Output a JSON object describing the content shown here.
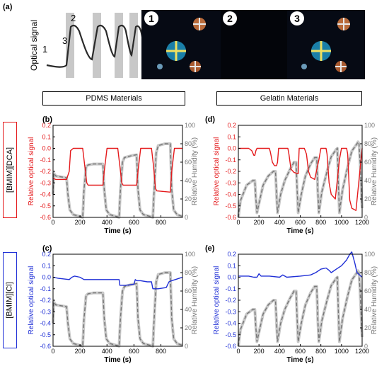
{
  "figure": {
    "panel_a": "(a)",
    "panel_b": "(b)",
    "panel_c": "(c)",
    "panel_d": "(d)",
    "panel_e": "(e)",
    "header_pdms": "PDMS Materials",
    "header_gelatin": "Gelatin Materials",
    "row_label_dca": "[BMIM][DCA]",
    "row_label_cl": "[BMIM][Cl]",
    "colors": {
      "red": "#e41a1c",
      "blue": "#1f2fd6",
      "gray": "#777777",
      "grayband": "#c8c8c8",
      "dca_box": "#e41a1c",
      "cl_box": "#1f2fd6"
    }
  },
  "panel_a": {
    "ylabel": "Optical signal",
    "points": [
      "1",
      "2",
      "3"
    ],
    "micrographs": [
      "1",
      "2",
      "3"
    ]
  },
  "chart_data": [
    {
      "panel": "(b)",
      "type": "line",
      "xlabel": "Time (s)",
      "ylabel": "Relative optical signal",
      "y2label": "Relative Humidity (%)",
      "xlim": [
        0,
        960
      ],
      "ylim": [
        -0.6,
        0.2
      ],
      "y2lim": [
        0,
        100
      ],
      "xticks": [
        0,
        200,
        400,
        600,
        800
      ],
      "yticks": [
        -0.6,
        -0.5,
        -0.4,
        -0.3,
        -0.2,
        -0.1,
        0.0,
        0.1,
        0.2
      ],
      "y2ticks": [
        0,
        20,
        40,
        60,
        80,
        100
      ],
      "signal_color": "#e41a1c",
      "signal": {
        "x": [
          0,
          20,
          100,
          120,
          130,
          150,
          220,
          235,
          250,
          260,
          370,
          380,
          400,
          480,
          495,
          510,
          520,
          620,
          630,
          650,
          730,
          745,
          760,
          770,
          870,
          880,
          900,
          960
        ],
        "y": [
          -0.26,
          -0.27,
          -0.27,
          -0.2,
          -0.02,
          0.0,
          0.0,
          -0.15,
          -0.3,
          -0.32,
          -0.32,
          -0.2,
          0.0,
          0.0,
          -0.15,
          -0.3,
          -0.32,
          -0.32,
          -0.2,
          0.0,
          0.0,
          -0.15,
          -0.35,
          -0.37,
          -0.38,
          -0.2,
          0.0,
          0.0
        ]
      },
      "humidity": {
        "x": [
          0,
          5,
          20,
          60,
          100,
          110,
          125,
          150,
          200,
          220,
          230,
          245,
          260,
          300,
          370,
          380,
          395,
          420,
          470,
          490,
          500,
          515,
          530,
          580,
          620,
          630,
          645,
          670,
          720,
          740,
          750,
          765,
          780,
          830,
          870,
          880,
          895,
          920,
          960
        ],
        "y": [
          25,
          48,
          45,
          44,
          43,
          25,
          8,
          3,
          1,
          0,
          30,
          55,
          57,
          58,
          58,
          30,
          8,
          3,
          1,
          0,
          30,
          60,
          65,
          67,
          68,
          30,
          8,
          3,
          1,
          0,
          30,
          70,
          78,
          80,
          80,
          30,
          8,
          3,
          1
        ]
      }
    },
    {
      "panel": "(c)",
      "type": "line",
      "xlabel": "Time (s)",
      "ylabel": "Relative optical signal",
      "y2label": "Relative Humidity (%)",
      "xlim": [
        0,
        960
      ],
      "ylim": [
        -0.6,
        0.2
      ],
      "y2lim": [
        0,
        100
      ],
      "xticks": [
        0,
        200,
        400,
        600,
        800
      ],
      "yticks": [
        -0.6,
        -0.5,
        -0.4,
        -0.3,
        -0.2,
        -0.1,
        0.0,
        0.1,
        0.2
      ],
      "y2ticks": [
        0,
        20,
        40,
        60,
        80,
        100
      ],
      "signal_color": "#1f2fd6",
      "signal": {
        "x": [
          0,
          40,
          80,
          120,
          140,
          160,
          200,
          230,
          250,
          300,
          350,
          400,
          460,
          490,
          495,
          540,
          600,
          610,
          620,
          650,
          700,
          730,
          740,
          780,
          840,
          860,
          880,
          960
        ],
        "y": [
          0.0,
          -0.01,
          -0.015,
          -0.02,
          0.0,
          0.01,
          0.0,
          -0.02,
          -0.02,
          -0.02,
          -0.02,
          -0.02,
          -0.02,
          -0.02,
          -0.07,
          -0.07,
          -0.06,
          -0.02,
          -0.03,
          -0.03,
          -0.04,
          -0.04,
          -0.1,
          -0.1,
          -0.09,
          -0.04,
          -0.03,
          0.0
        ]
      },
      "humidity": {
        "x": [
          0,
          5,
          20,
          60,
          100,
          110,
          125,
          150,
          200,
          220,
          230,
          245,
          260,
          300,
          370,
          380,
          395,
          420,
          470,
          490,
          500,
          515,
          530,
          580,
          620,
          630,
          645,
          670,
          720,
          740,
          750,
          765,
          780,
          830,
          870,
          880,
          895,
          920,
          960
        ],
        "y": [
          25,
          48,
          45,
          44,
          43,
          25,
          8,
          3,
          1,
          0,
          30,
          55,
          57,
          58,
          58,
          30,
          8,
          3,
          1,
          0,
          30,
          60,
          65,
          67,
          68,
          30,
          8,
          3,
          1,
          0,
          30,
          70,
          78,
          80,
          80,
          30,
          8,
          3,
          1
        ]
      }
    },
    {
      "panel": "(d)",
      "type": "line",
      "xlabel": "Time (s)",
      "ylabel": "Relative optical signal",
      "y2label": "Relative Humidity (%)",
      "xlim": [
        0,
        1200
      ],
      "ylim": [
        -0.6,
        0.2
      ],
      "y2lim": [
        0,
        100
      ],
      "xticks": [
        0,
        200,
        400,
        600,
        800,
        1000,
        1200
      ],
      "yticks": [
        -0.6,
        -0.5,
        -0.4,
        -0.3,
        -0.2,
        -0.1,
        0.0,
        0.1,
        0.2
      ],
      "y2ticks": [
        0,
        20,
        40,
        60,
        80,
        100
      ],
      "signal_color": "#e41a1c",
      "signal": {
        "x": [
          0,
          100,
          130,
          150,
          160,
          170,
          180,
          300,
          310,
          330,
          350,
          370,
          380,
          390,
          430,
          480,
          490,
          510,
          540,
          580,
          590,
          640,
          660,
          680,
          700,
          720,
          740,
          780,
          800,
          850,
          860,
          880,
          900,
          920,
          940,
          980,
          1000,
          1050,
          1060,
          1080,
          1100,
          1120,
          1140,
          1200
        ],
        "y": [
          0.0,
          0.0,
          -0.02,
          -0.06,
          -0.06,
          -0.02,
          0.0,
          0.0,
          -0.03,
          -0.12,
          -0.15,
          -0.15,
          -0.12,
          0.0,
          0.0,
          0.0,
          -0.05,
          -0.18,
          -0.21,
          -0.22,
          0.0,
          0.0,
          -0.05,
          -0.2,
          -0.25,
          -0.26,
          -0.27,
          -0.1,
          0.0,
          0.0,
          -0.05,
          -0.3,
          -0.4,
          -0.42,
          -0.44,
          -0.1,
          0.0,
          0.0,
          -0.05,
          -0.45,
          -0.52,
          -0.53,
          -0.54,
          0.0
        ]
      },
      "humidity": {
        "x": [
          0,
          20,
          80,
          140,
          160,
          170,
          180,
          210,
          240,
          290,
          340,
          360,
          370,
          380,
          410,
          450,
          500,
          540,
          560,
          570,
          580,
          610,
          650,
          700,
          740,
          760,
          770,
          780,
          810,
          860,
          900,
          950,
          960,
          970,
          980,
          1010,
          1060,
          1100,
          1150,
          1160,
          1170,
          1180,
          1200
        ],
        "y": [
          0,
          18,
          35,
          40,
          40,
          20,
          5,
          20,
          35,
          45,
          50,
          50,
          25,
          5,
          25,
          40,
          52,
          60,
          60,
          30,
          5,
          25,
          45,
          58,
          65,
          65,
          30,
          5,
          28,
          50,
          66,
          74,
          75,
          35,
          5,
          30,
          55,
          72,
          80,
          82,
          80,
          60,
          10
        ]
      }
    },
    {
      "panel": "(e)",
      "type": "line",
      "xlabel": "Time (s)",
      "ylabel": "Relative optical signal",
      "y2label": "Relative Humidity (%)",
      "xlim": [
        0,
        1200
      ],
      "ylim": [
        -0.6,
        0.2
      ],
      "y2lim": [
        0,
        100
      ],
      "xticks": [
        0,
        200,
        400,
        600,
        800,
        1000,
        1200
      ],
      "yticks": [
        -0.6,
        -0.5,
        -0.4,
        -0.3,
        -0.2,
        -0.1,
        0.0,
        0.1,
        0.2
      ],
      "y2ticks": [
        0,
        20,
        40,
        60,
        80,
        100
      ],
      "signal_color": "#1f2fd6",
      "signal": {
        "x": [
          0,
          100,
          150,
          180,
          200,
          220,
          300,
          400,
          430,
          470,
          600,
          700,
          750,
          800,
          850,
          880,
          900,
          950,
          1000,
          1050,
          1080,
          1100,
          1130,
          1150,
          1200
        ],
        "y": [
          0.01,
          0.01,
          0.0,
          0.0,
          0.03,
          0.01,
          0.01,
          0.0,
          0.02,
          0.0,
          0.01,
          0.02,
          0.04,
          0.07,
          0.08,
          0.06,
          0.04,
          0.07,
          0.1,
          0.15,
          0.2,
          0.22,
          0.12,
          0.04,
          0.0
        ]
      },
      "humidity": {
        "x": [
          0,
          20,
          80,
          140,
          160,
          170,
          180,
          210,
          240,
          290,
          340,
          360,
          370,
          380,
          410,
          450,
          500,
          540,
          560,
          570,
          580,
          610,
          650,
          700,
          740,
          760,
          770,
          780,
          810,
          860,
          900,
          950,
          960,
          970,
          980,
          1010,
          1060,
          1100,
          1150,
          1160,
          1170,
          1180,
          1200
        ],
        "y": [
          0,
          18,
          35,
          40,
          40,
          20,
          5,
          20,
          35,
          45,
          50,
          50,
          25,
          5,
          25,
          40,
          52,
          60,
          60,
          30,
          5,
          25,
          45,
          58,
          65,
          65,
          30,
          5,
          28,
          50,
          66,
          74,
          75,
          35,
          5,
          30,
          55,
          72,
          80,
          82,
          80,
          60,
          10
        ]
      }
    }
  ]
}
